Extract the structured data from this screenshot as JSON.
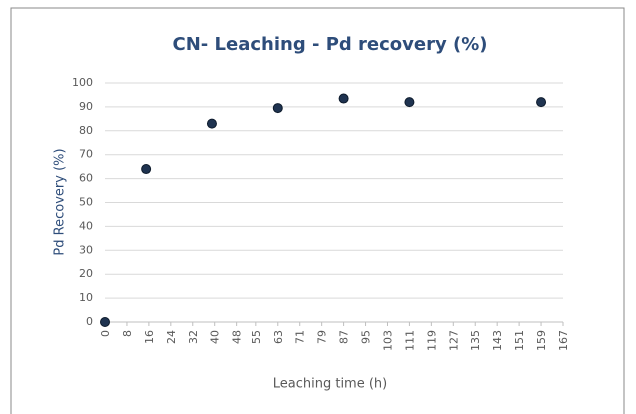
{
  "chart_data": {
    "type": "scatter",
    "title": "CN- Leaching - Pd recovery (%)",
    "x_label": "Leaching time (h)",
    "y_label": "Pd Recovery (%)",
    "series": [
      {
        "name": "Pd recovery",
        "color": "#1f3350",
        "x": [
          0,
          15,
          39,
          63,
          87,
          111,
          159
        ],
        "values": [
          0,
          64,
          83,
          89.5,
          93.5,
          92,
          92
        ]
      }
    ],
    "xlim": [
      0,
      167
    ],
    "xticks": [
      0,
      8,
      16,
      24,
      32,
      40,
      48,
      55,
      63,
      71,
      79,
      87,
      95,
      103,
      111,
      119,
      127,
      135,
      143,
      151,
      159,
      167
    ],
    "ylim": [
      0,
      100
    ],
    "yticks": [
      0,
      10,
      20,
      30,
      40,
      50,
      60,
      70,
      80,
      90,
      100
    ],
    "grid": true
  }
}
